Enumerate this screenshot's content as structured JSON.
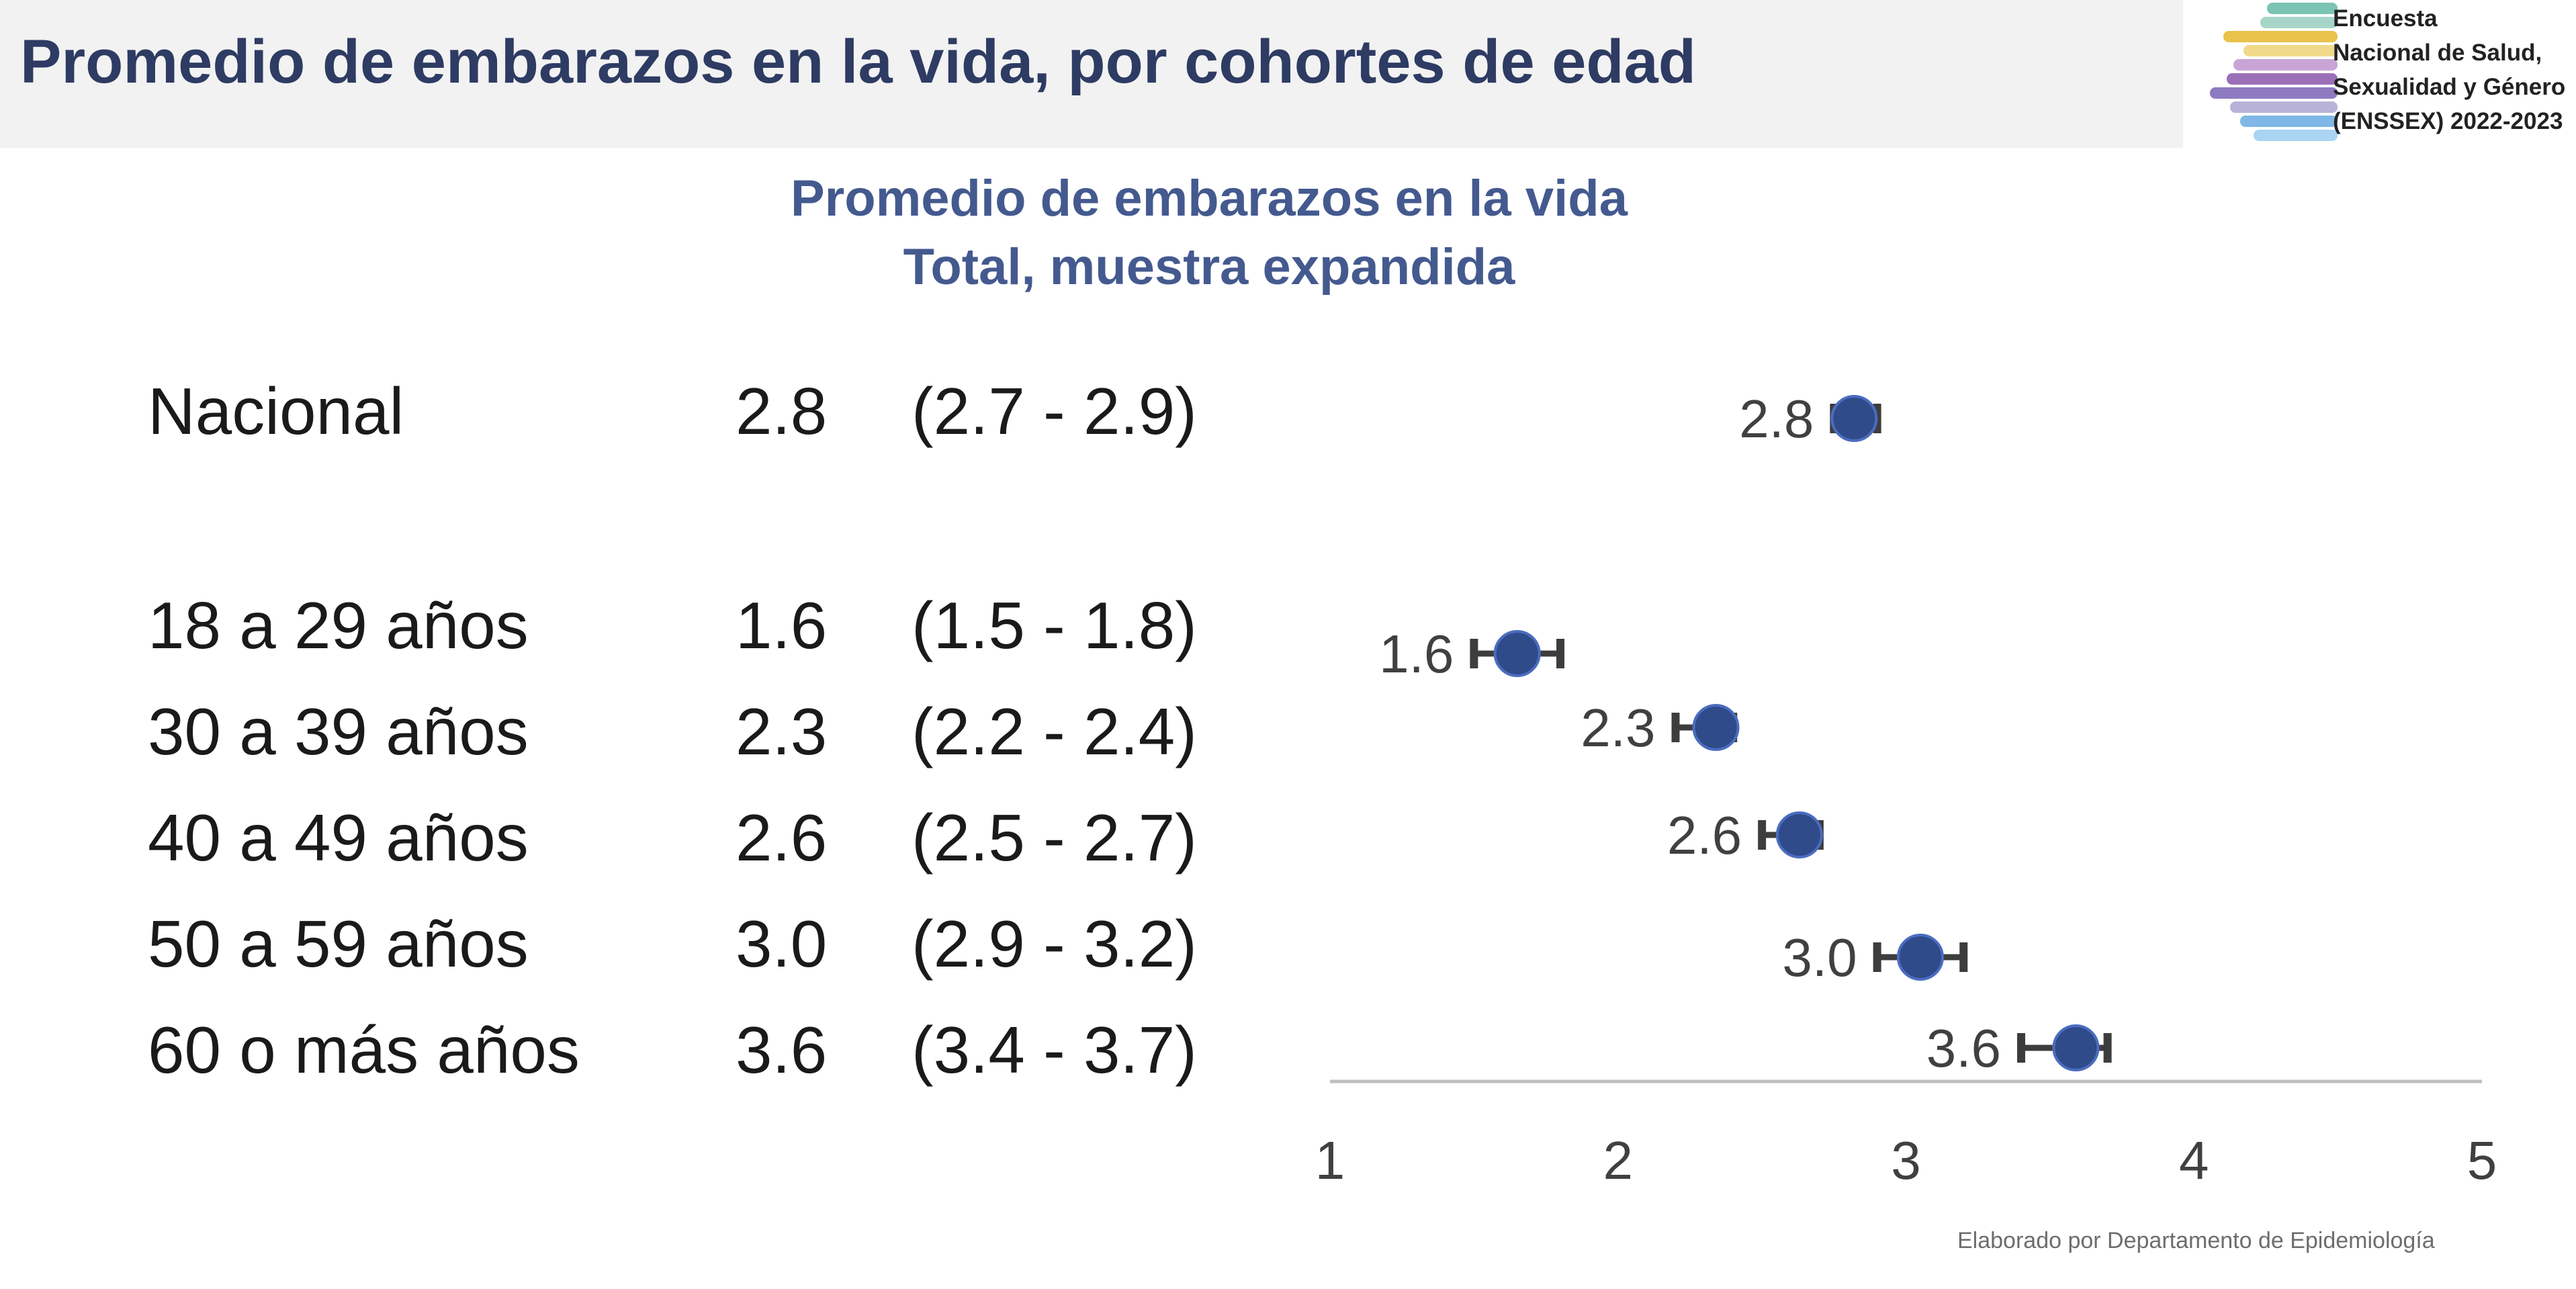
{
  "header": {
    "title": "Promedio de embarazos en la vida, por cohortes de edad"
  },
  "logo": {
    "lines": [
      "Encuesta",
      "Nacional de Salud,",
      "Sexualidad y Género",
      "(ENSSEX) 2022-2023"
    ],
    "stripe_colors": [
      "#7bc4b4",
      "#a7d6c9",
      "#e8c24b",
      "#f0d98a",
      "#c9a5d6",
      "#9b6fb8",
      "#8e7ac0",
      "#b9b2d8",
      "#7fb8e6",
      "#a9d4f2"
    ]
  },
  "subtitle": {
    "line1": "Promedio de embarazos en la vida",
    "line2": "Total, muestra expandida"
  },
  "table": {
    "rows": [
      {
        "label": "Nacional",
        "value": "2.8",
        "ci": "(2.7 - 2.9)"
      },
      {
        "label": "18 a 29 años",
        "value": "1.6",
        "ci": "(1.5 - 1.8)"
      },
      {
        "label": "30 a 39 años",
        "value": "2.3",
        "ci": "(2.2 - 2.4)"
      },
      {
        "label": "40 a 49 años",
        "value": "2.6",
        "ci": "(2.5 - 2.7)"
      },
      {
        "label": "50 a 59 años",
        "value": "3.0",
        "ci": "(2.9 - 3.2)"
      },
      {
        "label": "60 o más años",
        "value": "3.6",
        "ci": "(3.4 - 3.7)"
      }
    ]
  },
  "chart_data": {
    "type": "scatter",
    "title": "Promedio de embarazos en la vida",
    "subtitle": "Total, muestra expandida",
    "categories": [
      "Nacional",
      "18 a 29 años",
      "30 a 39 años",
      "40 a 49 años",
      "50 a 59 años",
      "60 o más años"
    ],
    "values": [
      2.82,
      1.65,
      2.34,
      2.63,
      3.05,
      3.59
    ],
    "data_labels": [
      "2.8",
      "1.6",
      "2.3",
      "2.6",
      "3.0",
      "3.6"
    ],
    "ci_lower": [
      2.75,
      1.5,
      2.2,
      2.5,
      2.9,
      3.4
    ],
    "ci_upper": [
      2.9,
      1.8,
      2.4,
      2.7,
      3.2,
      3.7
    ],
    "xlim": [
      1,
      5
    ],
    "xticks": [
      "1",
      "2",
      "3",
      "4",
      "5"
    ],
    "grid": false,
    "marker_color": "#2f4b8a",
    "errorbar_color": "#3d3d3d",
    "axis_color": "#bfbfbf"
  },
  "footer": {
    "credit": "Elaborado por Departamento de Epidemiología"
  }
}
